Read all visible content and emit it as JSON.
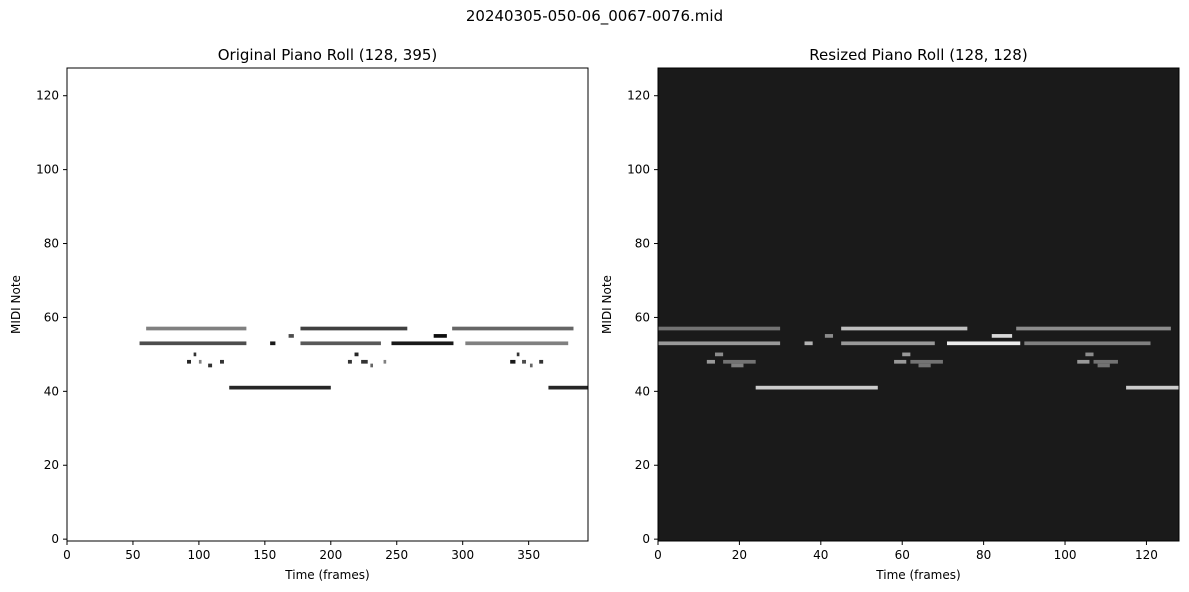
{
  "figure": {
    "suptitle": "20240305-050-06_0067-0076.mid"
  },
  "chart_data": [
    {
      "type": "heatmap",
      "title": "Original Piano Roll (128, 395)",
      "xlabel": "Time (frames)",
      "ylabel": "MIDI Note",
      "xlim": [
        0,
        395
      ],
      "ylim": [
        0,
        127
      ],
      "xticks": [
        0,
        50,
        100,
        150,
        200,
        250,
        300,
        350
      ],
      "yticks": [
        0,
        20,
        40,
        60,
        80,
        100,
        120
      ],
      "colormap": "gray_r",
      "background": "#ffffff",
      "notes": [
        {
          "pitch": 57,
          "start": 60,
          "end": 136,
          "value": 0.5
        },
        {
          "pitch": 53,
          "start": 55,
          "end": 136,
          "value": 0.7
        },
        {
          "pitch": 50,
          "start": 96,
          "end": 98,
          "value": 0.8
        },
        {
          "pitch": 48,
          "start": 91,
          "end": 94,
          "value": 0.85
        },
        {
          "pitch": 48,
          "start": 100,
          "end": 102,
          "value": 0.5
        },
        {
          "pitch": 47,
          "start": 107,
          "end": 110,
          "value": 0.8
        },
        {
          "pitch": 48,
          "start": 116,
          "end": 119,
          "value": 0.8
        },
        {
          "pitch": 41,
          "start": 123,
          "end": 200,
          "value": 0.85
        },
        {
          "pitch": 53,
          "start": 154,
          "end": 158,
          "value": 0.9
        },
        {
          "pitch": 55,
          "start": 168,
          "end": 172,
          "value": 0.7
        },
        {
          "pitch": 57,
          "start": 177,
          "end": 258,
          "value": 0.75
        },
        {
          "pitch": 53,
          "start": 177,
          "end": 238,
          "value": 0.65
        },
        {
          "pitch": 50,
          "start": 218,
          "end": 221,
          "value": 0.85
        },
        {
          "pitch": 48,
          "start": 213,
          "end": 216,
          "value": 0.8
        },
        {
          "pitch": 48,
          "start": 223,
          "end": 228,
          "value": 0.8
        },
        {
          "pitch": 47,
          "start": 230,
          "end": 232,
          "value": 0.6
        },
        {
          "pitch": 48,
          "start": 240,
          "end": 242,
          "value": 0.5
        },
        {
          "pitch": 53,
          "start": 246,
          "end": 293,
          "value": 0.9
        },
        {
          "pitch": 55,
          "start": 278,
          "end": 288,
          "value": 0.95
        },
        {
          "pitch": 57,
          "start": 292,
          "end": 384,
          "value": 0.6
        },
        {
          "pitch": 53,
          "start": 302,
          "end": 380,
          "value": 0.5
        },
        {
          "pitch": 50,
          "start": 341,
          "end": 343,
          "value": 0.8
        },
        {
          "pitch": 48,
          "start": 336,
          "end": 340,
          "value": 0.9
        },
        {
          "pitch": 48,
          "start": 345,
          "end": 348,
          "value": 0.7
        },
        {
          "pitch": 47,
          "start": 351,
          "end": 353,
          "value": 0.6
        },
        {
          "pitch": 48,
          "start": 358,
          "end": 361,
          "value": 0.8
        },
        {
          "pitch": 41,
          "start": 365,
          "end": 395,
          "value": 0.85
        }
      ]
    },
    {
      "type": "heatmap",
      "title": "Resized Piano Roll (128, 128)",
      "xlabel": "Time (frames)",
      "ylabel": "MIDI Note",
      "xlim": [
        0,
        128
      ],
      "ylim": [
        0,
        127
      ],
      "xticks": [
        0,
        20,
        40,
        60,
        80,
        100,
        120
      ],
      "yticks": [
        0,
        20,
        40,
        60,
        80,
        100,
        120
      ],
      "colormap": "gray",
      "background": "#1a1a1a",
      "notes": [
        {
          "pitch": 57,
          "start": 0,
          "end": 30,
          "value": 0.45
        },
        {
          "pitch": 53,
          "start": 0,
          "end": 30,
          "value": 0.6
        },
        {
          "pitch": 50,
          "start": 14,
          "end": 16,
          "value": 0.55
        },
        {
          "pitch": 48,
          "start": 12,
          "end": 14,
          "value": 0.6
        },
        {
          "pitch": 48,
          "start": 16,
          "end": 24,
          "value": 0.45
        },
        {
          "pitch": 47,
          "start": 18,
          "end": 21,
          "value": 0.5
        },
        {
          "pitch": 41,
          "start": 24,
          "end": 54,
          "value": 0.8
        },
        {
          "pitch": 53,
          "start": 36,
          "end": 38,
          "value": 0.7
        },
        {
          "pitch": 55,
          "start": 41,
          "end": 43,
          "value": 0.55
        },
        {
          "pitch": 57,
          "start": 45,
          "end": 76,
          "value": 0.75
        },
        {
          "pitch": 53,
          "start": 45,
          "end": 68,
          "value": 0.6
        },
        {
          "pitch": 50,
          "start": 60,
          "end": 62,
          "value": 0.6
        },
        {
          "pitch": 48,
          "start": 58,
          "end": 61,
          "value": 0.6
        },
        {
          "pitch": 48,
          "start": 62,
          "end": 70,
          "value": 0.45
        },
        {
          "pitch": 47,
          "start": 64,
          "end": 67,
          "value": 0.45
        },
        {
          "pitch": 53,
          "start": 71,
          "end": 89,
          "value": 0.92
        },
        {
          "pitch": 55,
          "start": 82,
          "end": 87,
          "value": 0.85
        },
        {
          "pitch": 57,
          "start": 88,
          "end": 126,
          "value": 0.55
        },
        {
          "pitch": 53,
          "start": 90,
          "end": 121,
          "value": 0.5
        },
        {
          "pitch": 50,
          "start": 105,
          "end": 107,
          "value": 0.55
        },
        {
          "pitch": 48,
          "start": 103,
          "end": 106,
          "value": 0.6
        },
        {
          "pitch": 48,
          "start": 107,
          "end": 113,
          "value": 0.45
        },
        {
          "pitch": 47,
          "start": 108,
          "end": 111,
          "value": 0.45
        },
        {
          "pitch": 41,
          "start": 115,
          "end": 128,
          "value": 0.8
        }
      ]
    }
  ]
}
